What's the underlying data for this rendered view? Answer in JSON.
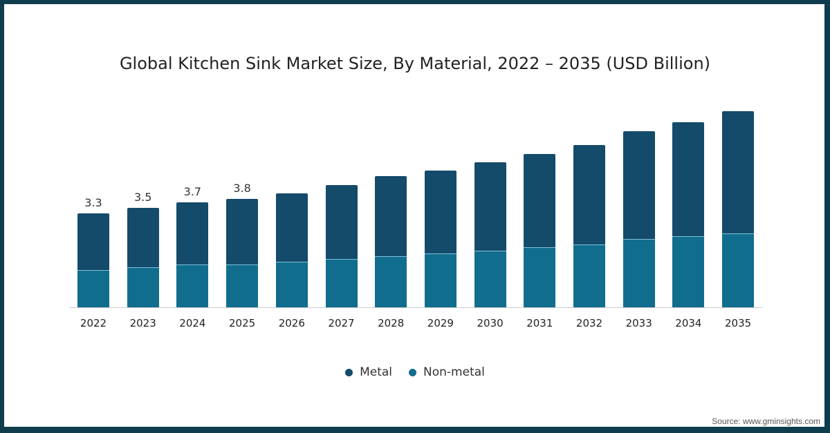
{
  "chart_data": {
    "type": "bar",
    "stacked": true,
    "title": "Global Kitchen Sink Market Size, By Material, 2022 – 2035 (USD Billion)",
    "xlabel": "",
    "ylabel": "",
    "categories": [
      "2022",
      "2023",
      "2024",
      "2025",
      "2026",
      "2027",
      "2028",
      "2029",
      "2030",
      "2031",
      "2032",
      "2033",
      "2034",
      "2035"
    ],
    "series": [
      {
        "name": "Non-metal",
        "color": "#116d8e",
        "values": [
          1.3,
          1.4,
          1.5,
          1.5,
          1.6,
          1.7,
          1.8,
          1.9,
          2.0,
          2.1,
          2.2,
          2.4,
          2.5,
          2.6
        ]
      },
      {
        "name": "Metal",
        "color": "#144a6a",
        "values": [
          2.0,
          2.1,
          2.2,
          2.3,
          2.4,
          2.6,
          2.8,
          2.9,
          3.1,
          3.3,
          3.5,
          3.8,
          4.0,
          4.3
        ]
      }
    ],
    "totals": [
      3.3,
      3.5,
      3.7,
      3.8,
      4.0,
      4.3,
      4.6,
      4.8,
      5.1,
      5.4,
      5.7,
      6.2,
      6.5,
      6.9
    ],
    "data_labels": {
      "2022": "3.3",
      "2023": "3.5",
      "2024": "3.7",
      "2025": "3.8"
    },
    "legend_position": "bottom",
    "grid": false
  },
  "legend": [
    {
      "label": "Metal",
      "color": "#144a6a"
    },
    {
      "label": "Non-metal",
      "color": "#116d8e"
    }
  ],
  "source": "Source: www.gminsights.com"
}
